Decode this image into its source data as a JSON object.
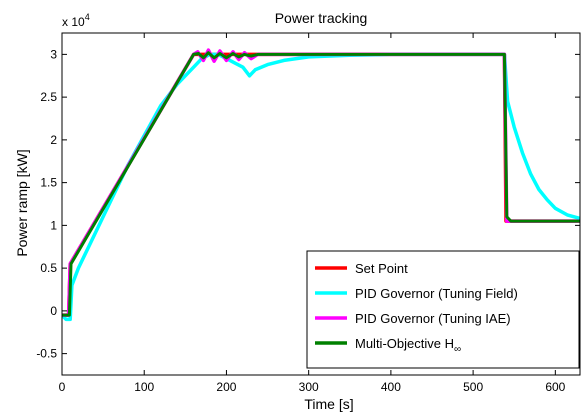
{
  "chart_data": {
    "type": "line",
    "title": "Power tracking",
    "xlabel": "Time [s]",
    "ylabel": "Power ramp [kW]",
    "y_multiplier": "x 10",
    "y_exponent": "4",
    "xlim": [
      0,
      630
    ],
    "ylim": [
      -0.75,
      3.25
    ],
    "xticks": [
      0,
      100,
      200,
      300,
      400,
      500,
      600
    ],
    "yticks": [
      -0.5,
      0,
      0.5,
      1,
      1.5,
      2,
      2.5,
      3
    ],
    "ytick_labels": [
      "-0.5",
      "0",
      "0.5",
      "1",
      "1.5",
      "2",
      "2.5",
      "3"
    ],
    "grid": false,
    "legend_position": "bottom-right",
    "series": [
      {
        "name": "Set Point",
        "color": "#ff0000",
        "x": [
          0,
          8,
          10,
          160,
          538,
          540,
          630
        ],
        "y": [
          -0.05,
          -0.05,
          0.55,
          3.0,
          3.0,
          1.05,
          1.05
        ]
      },
      {
        "name": "PID Governor (Tuning Field)",
        "color": "#00ffff",
        "x": [
          0,
          5,
          10,
          12,
          20,
          40,
          60,
          80,
          100,
          120,
          140,
          160,
          170,
          180,
          190,
          200,
          210,
          220,
          228,
          235,
          250,
          270,
          300,
          350,
          400,
          450,
          500,
          538,
          542,
          550,
          560,
          570,
          580,
          590,
          600,
          615,
          630
        ],
        "y": [
          -0.05,
          -0.1,
          -0.1,
          0.3,
          0.5,
          0.9,
          1.3,
          1.7,
          2.05,
          2.4,
          2.65,
          2.85,
          2.95,
          3.0,
          3.0,
          2.95,
          2.9,
          2.85,
          2.75,
          2.82,
          2.88,
          2.93,
          2.97,
          2.99,
          3.0,
          3.0,
          3.0,
          3.0,
          2.45,
          2.15,
          1.85,
          1.6,
          1.42,
          1.3,
          1.2,
          1.12,
          1.08
        ]
      },
      {
        "name": "PID Governor (Tuning IAE)",
        "color": "#ff00ff",
        "x": [
          0,
          8,
          10,
          160,
          165,
          172,
          178,
          185,
          192,
          200,
          208,
          215,
          222,
          230,
          238,
          245,
          538,
          541,
          545,
          630
        ],
        "y": [
          -0.05,
          -0.05,
          0.55,
          3.0,
          3.03,
          2.93,
          3.05,
          2.92,
          3.04,
          2.93,
          3.03,
          2.94,
          3.02,
          2.95,
          3.0,
          3.0,
          3.0,
          1.05,
          1.05,
          1.05
        ]
      },
      {
        "name": "Multi-Objective H∞",
        "color": "#008000",
        "x": [
          0,
          9,
          11,
          160,
          166,
          172,
          178,
          185,
          192,
          200,
          208,
          215,
          222,
          230,
          238,
          245,
          538,
          541,
          546,
          630
        ],
        "y": [
          -0.05,
          -0.05,
          0.55,
          3.0,
          3.01,
          2.96,
          3.02,
          2.96,
          3.01,
          2.96,
          3.01,
          2.97,
          3.0,
          2.98,
          3.0,
          3.0,
          3.0,
          1.1,
          1.05,
          1.05
        ]
      }
    ],
    "legend": [
      {
        "label": "Set Point",
        "sub": ""
      },
      {
        "label": "PID Governor (Tuning Field)",
        "sub": ""
      },
      {
        "label": "PID Governor (Tuning IAE)",
        "sub": ""
      },
      {
        "label": "Multi-Objective H",
        "sub": "∞"
      }
    ]
  }
}
